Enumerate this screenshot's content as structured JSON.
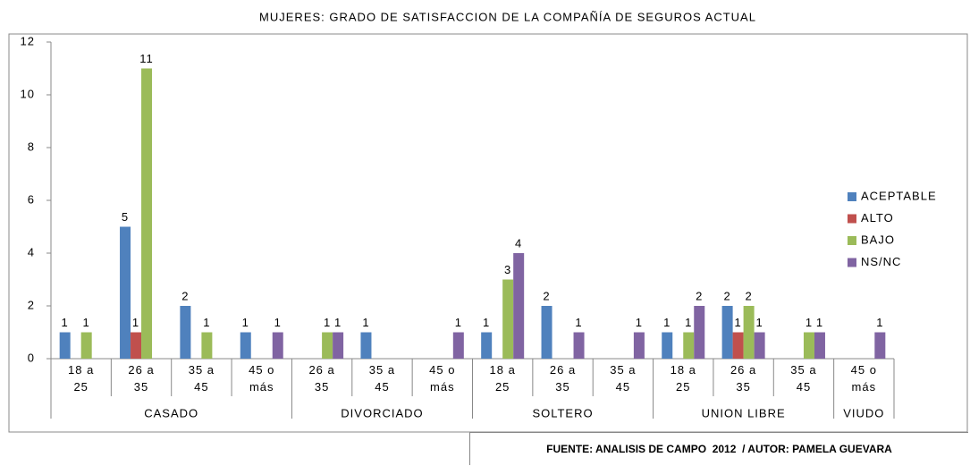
{
  "chart_data": {
    "type": "bar",
    "title": "MUJERES: GRADO DE SATISFACCION DE LA COMPAÑÍA DE SEGUROS ACTUAL",
    "groups": [
      {
        "name": "CASADO",
        "categories": [
          "18 a 25",
          "26 a 35",
          "35 a 45",
          "45 o más"
        ]
      },
      {
        "name": "DIVORCIADO",
        "categories": [
          "26 a 35",
          "35 a 45",
          "45 o más"
        ]
      },
      {
        "name": "SOLTERO",
        "categories": [
          "18 a 25",
          "26 a 35",
          "35 a 45"
        ]
      },
      {
        "name": "UNION LIBRE",
        "categories": [
          "18 a 25",
          "26 a 35",
          "35 a 45"
        ]
      },
      {
        "name": "VIUDO",
        "categories": [
          "45 o más"
        ]
      }
    ],
    "series": [
      {
        "name": "ACEPTABLE",
        "color": "#4f81bd",
        "values": [
          1,
          5,
          2,
          1,
          null,
          1,
          null,
          1,
          2,
          null,
          1,
          2,
          null,
          null
        ]
      },
      {
        "name": "ALTO",
        "color": "#c0504d",
        "values": [
          null,
          1,
          null,
          null,
          null,
          null,
          null,
          null,
          null,
          null,
          null,
          1,
          null,
          null
        ]
      },
      {
        "name": "BAJO",
        "color": "#9bbb59",
        "values": [
          1,
          11,
          1,
          null,
          1,
          null,
          null,
          3,
          null,
          null,
          1,
          2,
          1,
          null
        ]
      },
      {
        "name": "NS/NC",
        "color": "#8064a2",
        "values": [
          null,
          null,
          null,
          1,
          1,
          null,
          1,
          4,
          1,
          1,
          2,
          1,
          1,
          1
        ]
      }
    ],
    "ylim": [
      0,
      12
    ],
    "yticks": [
      0,
      2,
      4,
      6,
      8,
      10,
      12
    ],
    "grid": false,
    "legend": "right",
    "source": "FUENTE: ANALISIS DE CAMPO  2012  / AUTOR: PAMELA GUEVARA"
  }
}
